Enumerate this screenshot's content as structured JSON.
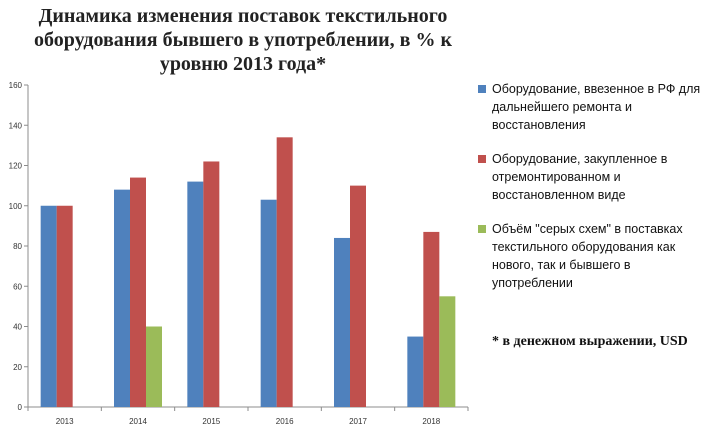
{
  "title": "Динамика изменения поставок текстильного оборудования бывшего в употреблении, в % к уровню 2013 года*",
  "footnote": "* в денежном выражении, USD",
  "chart_data": {
    "type": "bar",
    "categories": [
      "2013",
      "2014",
      "2015",
      "2016",
      "2017",
      "2018"
    ],
    "ylim": [
      0,
      160
    ],
    "yticks": [
      0,
      20,
      40,
      60,
      80,
      100,
      120,
      140,
      160
    ],
    "grid": false,
    "legend_position": "right",
    "series": [
      {
        "name": "Оборудование, ввезенное в РФ для дальнейшего ремонта и восстановления",
        "color": "#4F81BD",
        "values": [
          100,
          108,
          112,
          103,
          84,
          35
        ]
      },
      {
        "name": "Оборудование, закупленное в отремонтированном и восстановленном виде",
        "color": "#C0504D",
        "values": [
          100,
          114,
          122,
          134,
          110,
          87
        ]
      },
      {
        "name": "Объём \"серых схем\" в поставках текстильного оборудования как нового, так и бывшего в употреблении",
        "color": "#9BBB59",
        "values": [
          null,
          40,
          null,
          null,
          null,
          55
        ]
      }
    ]
  }
}
